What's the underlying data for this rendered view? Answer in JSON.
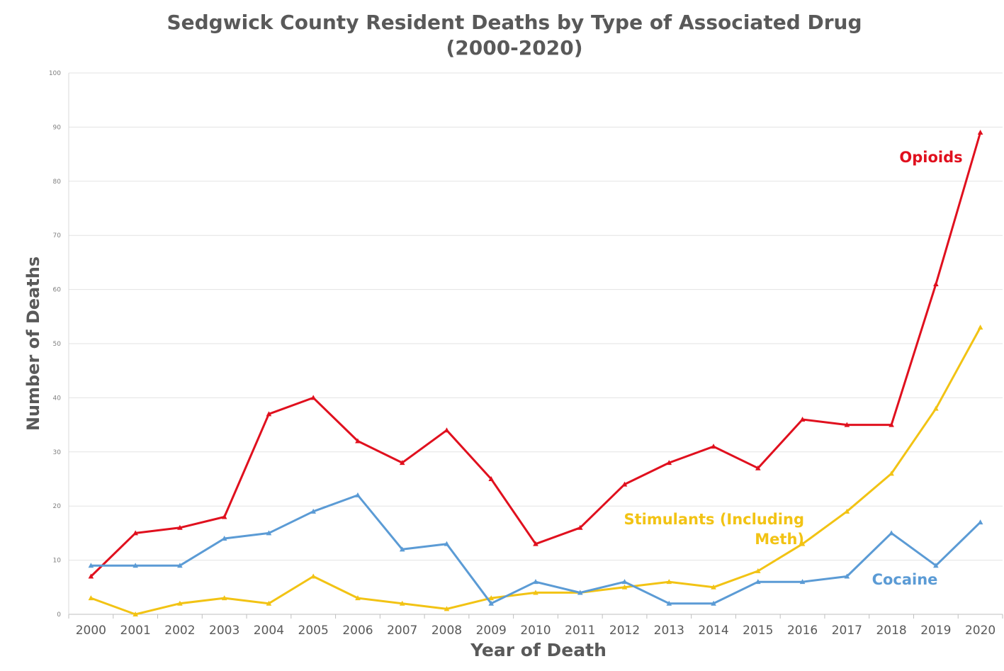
{
  "chart_data": {
    "type": "line",
    "title_line1": "Sedgwick County Resident Deaths by Type of Associated Drug",
    "title_line2": "(2000-2020)",
    "xlabel": "Year of Death",
    "ylabel": "Number of Deaths",
    "ylim": [
      0,
      100
    ],
    "yticks": [
      0,
      10,
      20,
      30,
      40,
      50,
      60,
      70,
      80,
      90,
      100
    ],
    "grid": true,
    "categories": [
      "2000",
      "2001",
      "2002",
      "2003",
      "2004",
      "2005",
      "2006",
      "2007",
      "2008",
      "2009",
      "2010",
      "2011",
      "2012",
      "2013",
      "2014",
      "2015",
      "2016",
      "2017",
      "2018",
      "2019",
      "2020"
    ],
    "series": [
      {
        "name": "Opioids",
        "label_lines": [
          "Opioids"
        ],
        "color": "#e0101e",
        "values": [
          7,
          15,
          16,
          18,
          37,
          40,
          32,
          28,
          34,
          25,
          13,
          16,
          24,
          28,
          31,
          27,
          36,
          35,
          35,
          61,
          89
        ]
      },
      {
        "name": "Stimulants (Including Meth)",
        "label_lines": [
          "Stimulants (Including",
          "Meth)"
        ],
        "color": "#f2c314",
        "values": [
          3,
          0,
          2,
          3,
          2,
          7,
          3,
          2,
          1,
          3,
          4,
          4,
          5,
          6,
          5,
          8,
          13,
          19,
          26,
          38,
          53
        ]
      },
      {
        "name": "Cocaine",
        "label_lines": [
          "Cocaine"
        ],
        "color": "#5b9bd5",
        "values": [
          9,
          9,
          9,
          14,
          15,
          19,
          22,
          12,
          13,
          2,
          6,
          4,
          6,
          2,
          2,
          6,
          6,
          7,
          15,
          9,
          17
        ]
      }
    ]
  }
}
